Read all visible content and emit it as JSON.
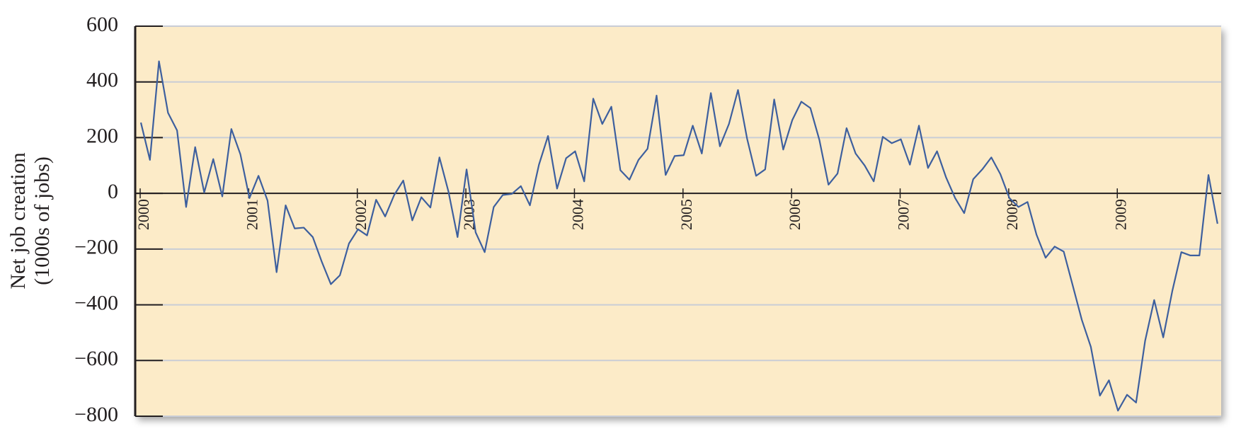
{
  "chart_data": {
    "type": "line",
    "ylabel": [
      "Net job creation",
      "(1000s of jobs)"
    ],
    "categories": [
      "2000",
      null,
      null,
      null,
      null,
      null,
      null,
      null,
      null,
      null,
      null,
      null,
      "2001",
      null,
      null,
      null,
      null,
      null,
      null,
      null,
      null,
      null,
      null,
      null,
      "2002",
      null,
      null,
      null,
      null,
      null,
      null,
      null,
      null,
      null,
      null,
      null,
      "2003",
      null,
      null,
      null,
      null,
      null,
      null,
      null,
      null,
      null,
      null,
      null,
      "2004",
      null,
      null,
      null,
      null,
      null,
      null,
      null,
      null,
      null,
      null,
      null,
      "2005",
      null,
      null,
      null,
      null,
      null,
      null,
      null,
      null,
      null,
      null,
      null,
      "2006",
      null,
      null,
      null,
      null,
      null,
      null,
      null,
      null,
      null,
      null,
      null,
      "2007",
      null,
      null,
      null,
      null,
      null,
      null,
      null,
      null,
      null,
      null,
      null,
      "2008",
      null,
      null,
      null,
      null,
      null,
      null,
      null,
      null,
      null,
      null,
      null,
      "2009",
      null,
      null,
      null,
      null,
      null,
      null,
      null,
      null,
      null,
      null,
      null
    ],
    "values": [
      254,
      120,
      474,
      289,
      226,
      -49,
      166,
      3,
      123,
      -11,
      231,
      140,
      -17,
      63,
      -26,
      -283,
      -43,
      -126,
      -123,
      -157,
      -246,
      -326,
      -294,
      -180,
      -129,
      -151,
      -23,
      -83,
      -6,
      46,
      -97,
      -14,
      -51,
      129,
      6,
      -157,
      86,
      -140,
      -211,
      -49,
      -6,
      -2,
      26,
      -43,
      103,
      206,
      17,
      126,
      151,
      43,
      340,
      249,
      311,
      83,
      49,
      120,
      160,
      351,
      66,
      134,
      137,
      243,
      143,
      360,
      169,
      249,
      371,
      197,
      63,
      86,
      337,
      157,
      263,
      329,
      306,
      191,
      31,
      71,
      234,
      143,
      100,
      43,
      203,
      180,
      194,
      103,
      243,
      91,
      151,
      57,
      -17,
      -71,
      51,
      86,
      129,
      69,
      -17,
      -49,
      -31,
      -149,
      -231,
      -191,
      -209,
      -331,
      -454,
      -551,
      -726,
      -671,
      -780,
      -723,
      -751,
      -529,
      -383,
      -517,
      -351,
      -211,
      -223,
      -223,
      66,
      -109
    ],
    "color": "#3d5f9e",
    "ylim": [
      -800,
      600
    ],
    "yticks": [
      {
        "value": -800,
        "label": "−800"
      },
      {
        "value": -600,
        "label": "−600"
      },
      {
        "value": -400,
        "label": "−400"
      },
      {
        "value": -200,
        "label": "−200"
      },
      0,
      200,
      400,
      600
    ],
    "grid": true
  }
}
